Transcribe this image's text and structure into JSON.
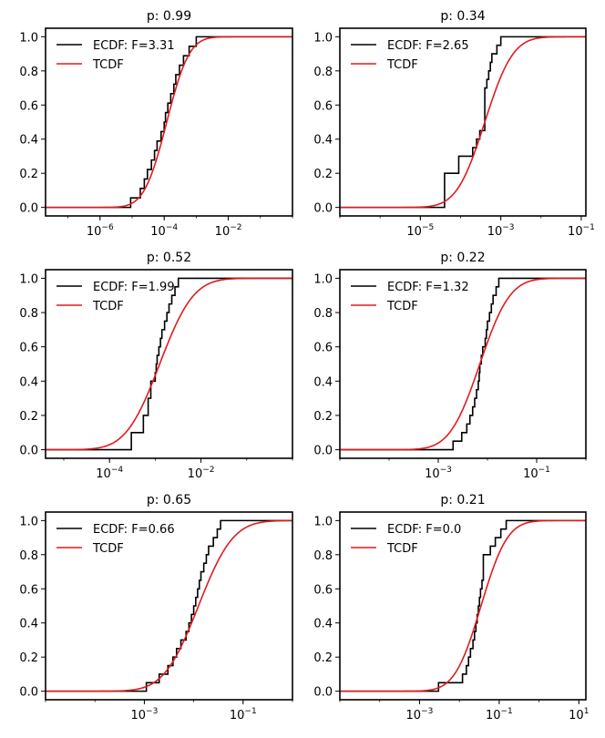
{
  "chart_data": [
    {
      "type": "line",
      "title": "p: 0.99",
      "xscale": "log",
      "xlim": [
        2e-08,
        1
      ],
      "ylim": [
        -0.05,
        1.05
      ],
      "xticks": [
        {
          "value": 1e-06,
          "base": "10",
          "exp": "−6"
        },
        {
          "value": 0.0001,
          "base": "10",
          "exp": "−4"
        },
        {
          "value": 0.01,
          "base": "10",
          "exp": "−2"
        }
      ],
      "yticks": [
        "0.0",
        "0.2",
        "0.4",
        "0.6",
        "0.8",
        "1.0"
      ],
      "legend": {
        "position": "top-left",
        "labels": [
          "ECDF: F=3.31",
          "TCDF"
        ]
      },
      "series": [
        {
          "name": "ECDF: F=3.31",
          "kind": "step",
          "color": "#000000",
          "x": [
            9e-06,
            1.8e-05,
            2.4e-05,
            3e-05,
            4e-05,
            5e-05,
            6e-05,
            8e-05,
            0.0001,
            0.00011,
            0.00013,
            0.00016,
            0.0002,
            0.00023,
            0.0003,
            0.0004,
            0.0006,
            0.001
          ],
          "xstart": 2e-08,
          "xend": 1
        },
        {
          "name": "TCDF",
          "kind": "cdf",
          "color": "#e41a1c",
          "median": 0.00012,
          "sigma_decades": 0.55
        }
      ]
    },
    {
      "type": "line",
      "title": "p: 0.34",
      "xscale": "log",
      "xlim": [
        1e-07,
        0.13
      ],
      "ylim": [
        -0.05,
        1.05
      ],
      "xticks": [
        {
          "value": 1e-05,
          "base": "10",
          "exp": "−5"
        },
        {
          "value": 0.001,
          "base": "10",
          "exp": "−3"
        },
        {
          "value": 0.1,
          "base": "10",
          "exp": "−1"
        }
      ],
      "yticks": [
        "0.0",
        "0.2",
        "0.4",
        "0.6",
        "0.8",
        "1.0"
      ],
      "legend": {
        "position": "top-left",
        "labels": [
          "ECDF: F=2.65",
          "TCDF"
        ]
      },
      "series": [
        {
          "name": "ECDF: F=2.65",
          "kind": "step",
          "color": "#000000",
          "x": [
            4e-05,
            4e-05,
            4e-05,
            4e-05,
            9e-05,
            9e-05,
            0.0002,
            0.00025,
            0.0003,
            0.0004,
            0.0004,
            0.0004,
            0.0004,
            0.0004,
            0.00045,
            0.0005,
            0.00055,
            0.0006,
            0.0008,
            0.001
          ],
          "xstart": 1e-07,
          "xend": 0.13
        },
        {
          "name": "TCDF",
          "kind": "cdf",
          "color": "#e41a1c",
          "median": 0.0004,
          "sigma_decades": 0.55
        }
      ]
    },
    {
      "type": "line",
      "title": "p: 0.52",
      "xscale": "log",
      "xlim": [
        4e-06,
        1
      ],
      "ylim": [
        -0.05,
        1.05
      ],
      "xticks": [
        {
          "value": 0.0001,
          "base": "10",
          "exp": "−4"
        },
        {
          "value": 0.01,
          "base": "10",
          "exp": "−2"
        }
      ],
      "yticks": [
        "0.0",
        "0.2",
        "0.4",
        "0.6",
        "0.8",
        "1.0"
      ],
      "legend": {
        "position": "top-left",
        "labels": [
          "ECDF: F=1.99",
          "TCDF"
        ]
      },
      "series": [
        {
          "name": "ECDF: F=1.99",
          "kind": "step",
          "color": "#000000",
          "x": [
            0.0003,
            0.0003,
            0.00055,
            0.00055,
            0.0007,
            0.0007,
            0.0008,
            0.0008,
            0.001,
            0.00105,
            0.0011,
            0.0012,
            0.0013,
            0.0014,
            0.0016,
            0.0018,
            0.002,
            0.0023,
            0.0027,
            0.0032
          ],
          "xstart": 4e-06,
          "xend": 1
        },
        {
          "name": "TCDF",
          "kind": "cdf",
          "color": "#e41a1c",
          "median": 0.00125,
          "sigma_decades": 0.58
        }
      ]
    },
    {
      "type": "line",
      "title": "p: 0.22",
      "xscale": "log",
      "xlim": [
        1e-05,
        1
      ],
      "ylim": [
        -0.05,
        1.05
      ],
      "xticks": [
        {
          "value": 0.001,
          "base": "10",
          "exp": "−3"
        },
        {
          "value": 0.1,
          "base": "10",
          "exp": "−1"
        }
      ],
      "yticks": [
        "0.0",
        "0.2",
        "0.4",
        "0.6",
        "0.8",
        "1.0"
      ],
      "legend": {
        "position": "top-left",
        "labels": [
          "ECDF: F=1.32",
          "TCDF"
        ]
      },
      "series": [
        {
          "name": "ECDF: F=1.32",
          "kind": "step",
          "color": "#000000",
          "x": [
            0.002,
            0.003,
            0.0038,
            0.0044,
            0.005,
            0.0055,
            0.006,
            0.0065,
            0.0068,
            0.007,
            0.0075,
            0.008,
            0.009,
            0.0095,
            0.01,
            0.011,
            0.012,
            0.013,
            0.015,
            0.017
          ],
          "xstart": 1e-05,
          "xend": 1
        },
        {
          "name": "TCDF",
          "kind": "cdf",
          "color": "#e41a1c",
          "median": 0.007,
          "sigma_decades": 0.48
        }
      ]
    },
    {
      "type": "line",
      "title": "p: 0.65",
      "xscale": "log",
      "xlim": [
        1e-05,
        1
      ],
      "ylim": [
        -0.05,
        1.05
      ],
      "xticks": [
        {
          "value": 0.001,
          "base": "10",
          "exp": "−3"
        },
        {
          "value": 0.1,
          "base": "10",
          "exp": "−1"
        }
      ],
      "yticks": [
        "0.0",
        "0.2",
        "0.4",
        "0.6",
        "0.8",
        "1.0"
      ],
      "legend": {
        "position": "top-left",
        "labels": [
          "ECDF: F=0.66",
          "TCDF"
        ]
      },
      "series": [
        {
          "name": "ECDF: F=0.66",
          "kind": "step",
          "color": "#000000",
          "x": [
            0.0011,
            0.002,
            0.003,
            0.0038,
            0.0045,
            0.0055,
            0.007,
            0.008,
            0.009,
            0.01,
            0.011,
            0.012,
            0.013,
            0.014,
            0.016,
            0.018,
            0.02,
            0.025,
            0.03,
            0.035
          ],
          "xstart": 1e-05,
          "xend": 1
        },
        {
          "name": "TCDF",
          "kind": "cdf",
          "color": "#e41a1c",
          "median": 0.0125,
          "sigma_decades": 0.55
        }
      ]
    },
    {
      "type": "line",
      "title": "p: 0.21",
      "xscale": "log",
      "xlim": [
        1e-05,
        15
      ],
      "ylim": [
        -0.05,
        1.05
      ],
      "xticks": [
        {
          "value": 0.001,
          "base": "10",
          "exp": "−3"
        },
        {
          "value": 0.1,
          "base": "10",
          "exp": "−1"
        },
        {
          "value": 10,
          "base": "10",
          "exp": "1"
        }
      ],
      "yticks": [
        "0.0",
        "0.2",
        "0.4",
        "0.6",
        "0.8",
        "1.0"
      ],
      "legend": {
        "position": "top-left",
        "labels": [
          "ECDF: F=0.0",
          "TCDF"
        ]
      },
      "series": [
        {
          "name": "ECDF: F=0.0",
          "kind": "step",
          "color": "#000000",
          "x": [
            0.003,
            0.012,
            0.015,
            0.017,
            0.019,
            0.022,
            0.024,
            0.026,
            0.028,
            0.03,
            0.032,
            0.034,
            0.037,
            0.04,
            0.04,
            0.04,
            0.06,
            0.08,
            0.11,
            0.15
          ],
          "xstart": 1e-05,
          "xend": 15
        },
        {
          "name": "TCDF",
          "kind": "cdf",
          "color": "#e41a1c",
          "median": 0.035,
          "sigma_decades": 0.52
        }
      ]
    }
  ]
}
